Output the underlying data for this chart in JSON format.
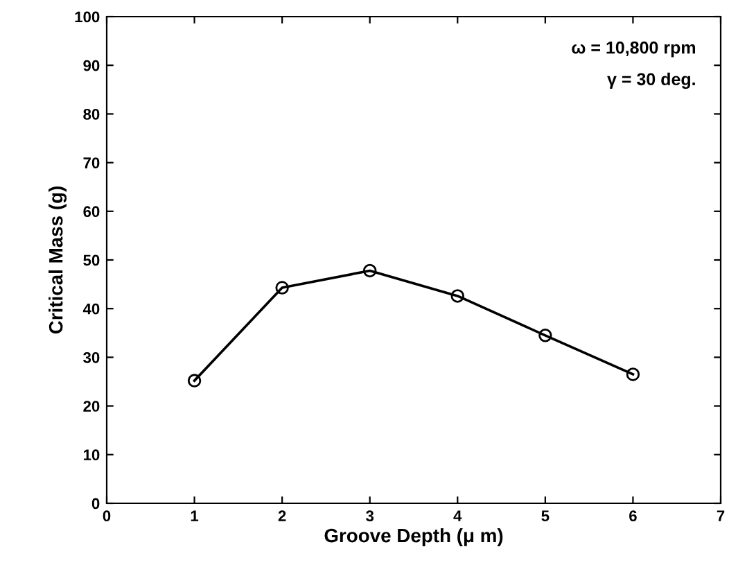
{
  "chart_data": {
    "type": "line",
    "xlabel": "Groove Depth (μ m)",
    "ylabel": "Critical Mass (g)",
    "x": [
      1,
      2,
      3,
      4,
      5,
      6
    ],
    "series": [
      {
        "color": "#000000",
        "values": [
          25.2,
          44.3,
          47.8,
          42.6,
          34.5,
          26.5
        ]
      }
    ],
    "marker": "circle",
    "line_style": "solid",
    "xlim": [
      0,
      7
    ],
    "xticks": [
      0,
      1,
      2,
      3,
      4,
      5,
      6,
      7
    ],
    "ylim": [
      0,
      100
    ],
    "yticks": [
      0,
      10,
      20,
      30,
      40,
      50,
      60,
      70,
      80,
      90,
      100
    ],
    "grid": false,
    "legend": false,
    "annotations": [
      "ω = 10,800 rpm",
      "γ = 30 deg."
    ]
  }
}
